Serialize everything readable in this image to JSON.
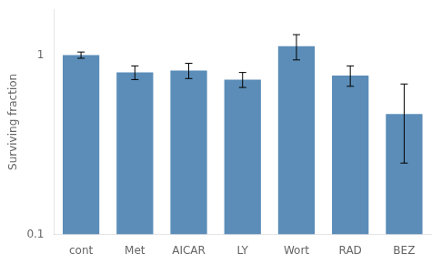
{
  "chart_data": {
    "type": "bar",
    "categories": [
      "cont",
      "Met",
      "AICAR",
      "LY",
      "Wort",
      "RAD",
      "BEZ"
    ],
    "values": [
      1.0,
      0.8,
      0.82,
      0.73,
      1.12,
      0.77,
      0.47
    ],
    "errors": [
      0.04,
      0.07,
      0.08,
      0.07,
      0.18,
      0.1,
      0.22
    ],
    "color": "#5b8db8",
    "ylabel": "Surviving fraction",
    "ylim": [
      0.1,
      1.8
    ],
    "yticks": [
      0.1,
      1
    ],
    "log": "y",
    "grid": false
  }
}
